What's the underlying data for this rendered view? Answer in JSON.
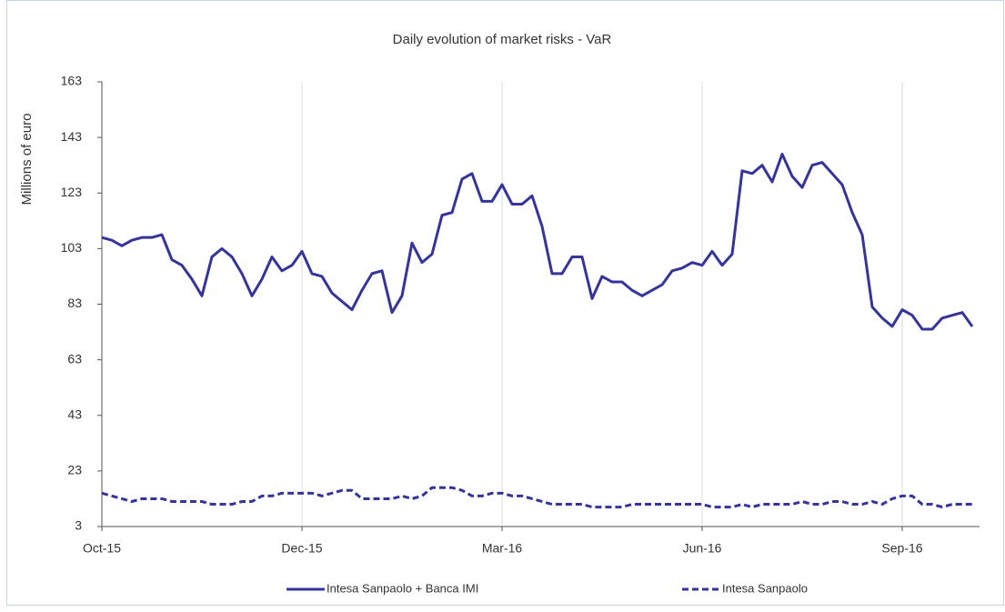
{
  "chart_data": {
    "type": "line",
    "title": "Daily evolution of market risks - VaR",
    "y_label": "Millions  of euro",
    "categories": [
      "Oct-15",
      null,
      null,
      null,
      null,
      null,
      null,
      null,
      null,
      null,
      null,
      null,
      null,
      null,
      null,
      null,
      null,
      null,
      null,
      null,
      "Dec-15",
      null,
      null,
      null,
      null,
      null,
      null,
      null,
      null,
      null,
      null,
      null,
      null,
      null,
      null,
      null,
      null,
      null,
      null,
      null,
      "Mar-16",
      null,
      null,
      null,
      null,
      null,
      null,
      null,
      null,
      null,
      null,
      null,
      null,
      null,
      null,
      null,
      null,
      null,
      null,
      null,
      "Jun-16",
      null,
      null,
      null,
      null,
      null,
      null,
      null,
      null,
      null,
      null,
      null,
      null,
      null,
      null,
      null,
      null,
      null,
      null,
      null,
      "Sep-16",
      null,
      null,
      null,
      null,
      null,
      null,
      null
    ],
    "series": [
      {
        "name": "Intesa Sanpaolo + Banca IMI",
        "color": "#34349a",
        "dash": false,
        "values": [
          107,
          106,
          104,
          106,
          107,
          107,
          108,
          99,
          97,
          92,
          86,
          100,
          103,
          100,
          94,
          86,
          92,
          100,
          95,
          97,
          102,
          94,
          93,
          87,
          84,
          81,
          88,
          94,
          95,
          80,
          86,
          105,
          98,
          101,
          115,
          116,
          128,
          130,
          120,
          120,
          126,
          119,
          119,
          122,
          111,
          94,
          94,
          100,
          100,
          85,
          93,
          91,
          91,
          88,
          86,
          88,
          90,
          95,
          96,
          98,
          97,
          102,
          97,
          101,
          131,
          130,
          133,
          127,
          137,
          129,
          125,
          133,
          134,
          130,
          126,
          116,
          108,
          82,
          78,
          75,
          81,
          79,
          74,
          74,
          78,
          79,
          80,
          75
        ]
      },
      {
        "name": "Intesa Sanpaolo",
        "color": "#34349a",
        "dash": true,
        "values": [
          15,
          14,
          13,
          12,
          13,
          13,
          13,
          12,
          12,
          12,
          12,
          11,
          11,
          11,
          12,
          12,
          14,
          14,
          15,
          15,
          15,
          15,
          14,
          15,
          16,
          16,
          13,
          13,
          13,
          13,
          14,
          13,
          14,
          17,
          17,
          17,
          16,
          14,
          14,
          15,
          15,
          14,
          14,
          13,
          12,
          11,
          11,
          11,
          11,
          10,
          10,
          10,
          10,
          11,
          11,
          11,
          11,
          11,
          11,
          11,
          11,
          10,
          10,
          10,
          11,
          10,
          11,
          11,
          11,
          11,
          12,
          11,
          11,
          12,
          12,
          11,
          11,
          12,
          11,
          13,
          14,
          14,
          11,
          11,
          10,
          11,
          11,
          11
        ]
      }
    ],
    "ylim": [
      3,
      163
    ],
    "yticks": [
      3,
      23,
      43,
      63,
      83,
      103,
      123,
      143,
      163
    ],
    "grid": "x",
    "legend": "bottom"
  }
}
